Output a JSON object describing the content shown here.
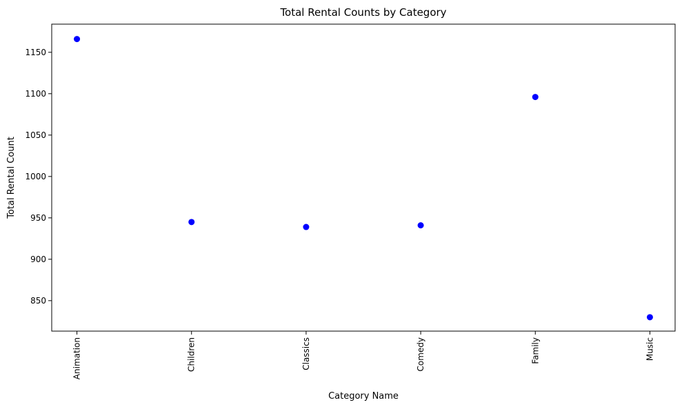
{
  "chart_data": {
    "type": "scatter",
    "title": "Total Rental Counts by Category",
    "xlabel": "Category Name",
    "ylabel": "Total Rental Count",
    "categories": [
      "Animation",
      "Children",
      "Classics",
      "Comedy",
      "Family",
      "Music"
    ],
    "values": [
      1166,
      945,
      939,
      941,
      1096,
      830
    ],
    "ylim": [
      813.2,
      1184.0
    ],
    "yticks": [
      850,
      900,
      950,
      1000,
      1050,
      1100,
      1150
    ],
    "ytick_labels": [
      "850",
      "900",
      "950",
      "1000",
      "1050",
      "1100",
      "1150"
    ],
    "x_tick_rotation": "vertical",
    "grid": false,
    "legend": "none",
    "marker_color": "#0000ff"
  }
}
